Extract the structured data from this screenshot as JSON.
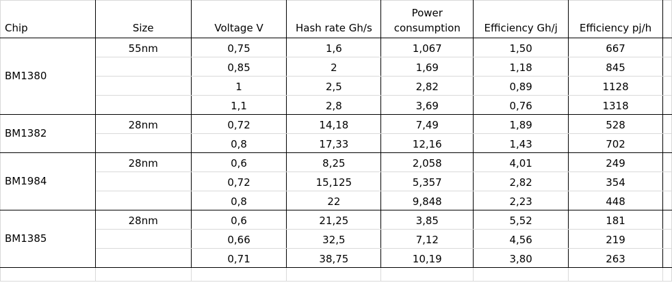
{
  "headers": {
    "chip": "Chip",
    "size": "Size",
    "voltage": "Voltage V",
    "hashrate": "Hash rate Gh/s",
    "power": "Power consumption",
    "eff_ghj": "Efficiency Gh/j",
    "eff_pjh": "Efficiency pj/h"
  },
  "groups": [
    {
      "chip": "BM1380",
      "rows": [
        {
          "size": "55nm",
          "voltage": "0,75",
          "hashrate": "1,6",
          "power": "1,067",
          "eff_ghj": "1,50",
          "eff_pjh": "667"
        },
        {
          "size": "",
          "voltage": "0,85",
          "hashrate": "2",
          "power": "1,69",
          "eff_ghj": "1,18",
          "eff_pjh": "845"
        },
        {
          "size": "",
          "voltage": "1",
          "hashrate": "2,5",
          "power": "2,82",
          "eff_ghj": "0,89",
          "eff_pjh": "1128"
        },
        {
          "size": "",
          "voltage": "1,1",
          "hashrate": "2,8",
          "power": "3,69",
          "eff_ghj": "0,76",
          "eff_pjh": "1318"
        }
      ]
    },
    {
      "chip": "BM1382",
      "rows": [
        {
          "size": "28nm",
          "voltage": "0,72",
          "hashrate": "14,18",
          "power": "7,49",
          "eff_ghj": "1,89",
          "eff_pjh": "528"
        },
        {
          "size": "",
          "voltage": "0,8",
          "hashrate": "17,33",
          "power": "12,16",
          "eff_ghj": "1,43",
          "eff_pjh": "702"
        }
      ]
    },
    {
      "chip": "BM1984",
      "rows": [
        {
          "size": "28nm",
          "voltage": "0,6",
          "hashrate": "8,25",
          "power": "2,058",
          "eff_ghj": "4,01",
          "eff_pjh": "249"
        },
        {
          "size": "",
          "voltage": "0,72",
          "hashrate": "15,125",
          "power": "5,357",
          "eff_ghj": "2,82",
          "eff_pjh": "354"
        },
        {
          "size": "",
          "voltage": "0,8",
          "hashrate": "22",
          "power": "9,848",
          "eff_ghj": "2,23",
          "eff_pjh": "448"
        }
      ]
    },
    {
      "chip": "BM1385",
      "rows": [
        {
          "size": "28nm",
          "voltage": "0,6",
          "hashrate": "21,25",
          "power": "3,85",
          "eff_ghj": "5,52",
          "eff_pjh": "181"
        },
        {
          "size": "",
          "voltage": "0,66",
          "hashrate": "32,5",
          "power": "7,12",
          "eff_ghj": "4,56",
          "eff_pjh": "219"
        },
        {
          "size": "",
          "voltage": "0,71",
          "hashrate": "38,75",
          "power": "10,19",
          "eff_ghj": "3,80",
          "eff_pjh": "263"
        }
      ]
    }
  ]
}
